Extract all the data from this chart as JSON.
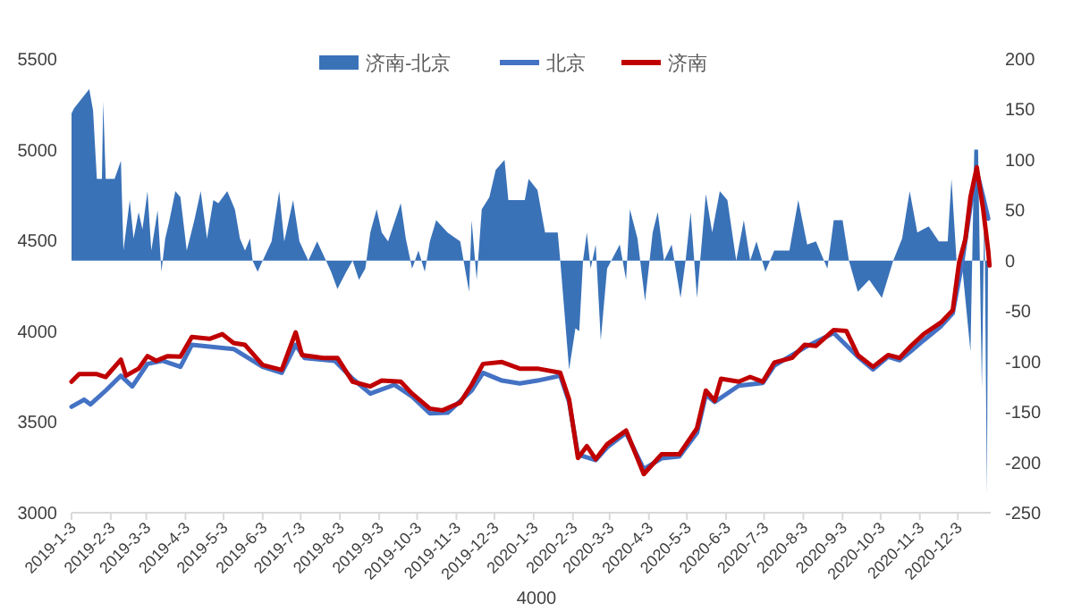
{
  "chart_data": {
    "type": "line",
    "legend": "top",
    "xlim": [
      "2019-01-03",
      "2020-12-29"
    ],
    "xticks": [
      {
        "value": "2019-01-03",
        "label": "2019-1-3"
      },
      {
        "value": "2019-02-03",
        "label": "2019-2-3"
      },
      {
        "value": "2019-03-03",
        "label": "2019-3-3"
      },
      {
        "value": "2019-04-03",
        "label": "2019-4-3"
      },
      {
        "value": "2019-05-03",
        "label": "2019-5-3"
      },
      {
        "value": "2019-06-03",
        "label": "2019-6-3"
      },
      {
        "value": "2019-07-03",
        "label": "2019-7-3"
      },
      {
        "value": "2019-08-03",
        "label": "2019-8-3"
      },
      {
        "value": "2019-09-03",
        "label": "2019-9-3"
      },
      {
        "value": "2019-10-03",
        "label": "2019-10-3"
      },
      {
        "value": "2019-11-03",
        "label": "2019-11-3"
      },
      {
        "value": "2019-12-03",
        "label": "2019-12-3"
      },
      {
        "value": "2020-01-03",
        "label": "2020-1-3"
      },
      {
        "value": "2020-02-03",
        "label": "2020-2-3"
      },
      {
        "value": "2020-03-03",
        "label": "2020-3-3"
      },
      {
        "value": "2020-04-03",
        "label": "2020-4-3"
      },
      {
        "value": "2020-05-03",
        "label": "2020-5-3"
      },
      {
        "value": "2020-06-03",
        "label": "2020-6-3"
      },
      {
        "value": "2020-07-03",
        "label": "2020-7-3"
      },
      {
        "value": "2020-08-03",
        "label": "2020-8-3"
      },
      {
        "value": "2020-09-03",
        "label": "2020-9-3"
      },
      {
        "value": "2020-10-03",
        "label": "2020-10-3"
      },
      {
        "value": "2020-11-03",
        "label": "2020-11-3"
      },
      {
        "value": "2020-12-03",
        "label": "2020-12-3"
      }
    ],
    "ylim": [
      3000,
      5500
    ],
    "yticks": [
      3000,
      3500,
      4000,
      4500,
      5000,
      5500
    ],
    "y2lim": [
      -250,
      200
    ],
    "y2ticks": [
      -250,
      -200,
      -150,
      -100,
      -50,
      0,
      50,
      100,
      150,
      200
    ],
    "annotations": [
      "4000"
    ],
    "series": [
      {
        "name": "济南-北京",
        "type": "area",
        "axis": "y2",
        "color": "#3a72b8",
        "x": [
          "2019-01-03",
          "2019-01-05",
          "2019-01-17",
          "2019-01-20",
          "2019-01-23",
          "2019-01-27",
          "2019-01-28",
          "2019-01-30",
          "2019-02-06",
          "2019-02-11",
          "2019-02-13",
          "2019-02-18",
          "2019-02-21",
          "2019-02-25",
          "2019-02-28",
          "2019-03-04",
          "2019-03-07",
          "2019-03-12",
          "2019-03-15",
          "2019-03-18",
          "2019-03-21",
          "2019-03-26",
          "2019-03-30",
          "2019-04-04",
          "2019-04-10",
          "2019-04-15",
          "2019-04-20",
          "2019-04-25",
          "2019-04-29",
          "2019-05-06",
          "2019-05-12",
          "2019-05-16",
          "2019-05-20",
          "2019-05-24",
          "2019-05-26",
          "2019-05-30",
          "2019-06-03",
          "2019-06-10",
          "2019-06-16",
          "2019-06-20",
          "2019-06-27",
          "2019-07-02",
          "2019-07-09",
          "2019-07-16",
          "2019-07-23",
          "2019-07-27",
          "2019-08-01",
          "2019-08-08",
          "2019-08-13",
          "2019-08-18",
          "2019-08-23",
          "2019-08-27",
          "2019-09-01",
          "2019-09-05",
          "2019-09-10",
          "2019-09-20",
          "2019-09-24",
          "2019-09-29",
          "2019-10-04",
          "2019-10-09",
          "2019-10-13",
          "2019-10-18",
          "2019-10-27",
          "2019-11-06",
          "2019-11-13",
          "2019-11-15",
          "2019-11-19",
          "2019-11-23",
          "2019-11-29",
          "2019-12-04",
          "2019-12-11",
          "2019-12-14",
          "2019-12-27",
          "2019-12-30",
          "2020-01-06",
          "2020-01-12",
          "2020-01-22",
          "2020-01-24",
          "2020-01-31",
          "2020-02-05",
          "2020-02-08",
          "2020-02-11",
          "2020-02-14",
          "2020-02-17",
          "2020-02-21",
          "2020-02-25",
          "2020-03-01",
          "2020-03-11",
          "2020-03-16",
          "2020-03-19",
          "2020-03-25",
          "2020-03-31",
          "2020-04-06",
          "2020-04-10",
          "2020-04-15",
          "2020-04-21",
          "2020-04-28",
          "2020-05-02",
          "2020-05-06",
          "2020-05-11",
          "2020-05-18",
          "2020-05-23",
          "2020-05-29",
          "2020-06-04",
          "2020-06-11",
          "2020-06-17",
          "2020-06-22",
          "2020-06-27",
          "2020-07-04",
          "2020-07-11",
          "2020-07-23",
          "2020-07-30",
          "2020-08-06",
          "2020-08-13",
          "2020-08-22",
          "2020-08-27",
          "2020-09-03",
          "2020-09-08",
          "2020-09-15",
          "2020-09-24",
          "2020-10-04",
          "2020-10-13",
          "2020-10-20",
          "2020-10-26",
          "2020-11-01",
          "2020-11-10",
          "2020-11-18",
          "2020-11-25",
          "2020-11-28",
          "2020-12-02",
          "2020-12-06",
          "2020-12-13",
          "2020-12-16",
          "2020-12-19",
          "2020-12-22",
          "2020-12-24",
          "2020-12-26",
          "2020-12-27"
        ],
        "values": [
          146,
          151,
          170,
          149,
          81,
          81,
          158,
          81,
          81,
          99,
          10,
          60,
          22,
          48,
          31,
          69,
          10,
          50,
          -11,
          22,
          38,
          69,
          63,
          10,
          40,
          69,
          22,
          60,
          57,
          69,
          51,
          22,
          10,
          22,
          0,
          -11,
          0,
          19,
          69,
          19,
          60,
          19,
          0,
          19,
          0,
          -11,
          -28,
          -11,
          0,
          -19,
          -8,
          28,
          51,
          28,
          19,
          57,
          22,
          -8,
          10,
          -11,
          19,
          40,
          28,
          19,
          -31,
          40,
          -19,
          51,
          63,
          90,
          100,
          60,
          60,
          81,
          70,
          28,
          28,
          0,
          -108,
          -67,
          -70,
          0,
          28,
          -8,
          16,
          -79,
          -8,
          16,
          -19,
          51,
          22,
          -40,
          28,
          48,
          0,
          16,
          -37,
          0,
          48,
          -37,
          66,
          28,
          69,
          60,
          0,
          40,
          0,
          19,
          -11,
          10,
          10,
          60,
          16,
          19,
          -8,
          40,
          40,
          0,
          -31,
          -19,
          -37,
          0,
          22,
          69,
          28,
          34,
          19,
          19,
          81,
          0,
          0,
          -90,
          110,
          110,
          -126,
          57,
          -232,
          37
        ]
      },
      {
        "name": "北京",
        "color": "#4472c4",
        "x": [
          "2019-01-03",
          "2019-01-13",
          "2019-01-18",
          "2019-01-30",
          "2019-02-11",
          "2019-02-20",
          "2019-03-04",
          "2019-03-16",
          "2019-03-30",
          "2019-04-08",
          "2019-04-27",
          "2019-05-11",
          "2019-06-03",
          "2019-06-18",
          "2019-06-29",
          "2019-07-06",
          "2019-07-30",
          "2019-08-13",
          "2019-08-27",
          "2019-09-15",
          "2019-09-29",
          "2019-10-13",
          "2019-10-27",
          "2019-11-15",
          "2019-11-24",
          "2019-12-09",
          "2019-12-23",
          "2020-01-06",
          "2020-01-24",
          "2020-01-31",
          "2020-02-07",
          "2020-02-21",
          "2020-03-01",
          "2020-03-16",
          "2020-03-30",
          "2020-04-13",
          "2020-04-27",
          "2020-05-11",
          "2020-05-18",
          "2020-05-25",
          "2020-06-13",
          "2020-07-02",
          "2020-07-11",
          "2020-08-04",
          "2020-08-27",
          "2020-09-15",
          "2020-09-27",
          "2020-10-09",
          "2020-10-18",
          "2020-10-27",
          "2020-11-06",
          "2020-11-20",
          "2020-11-29",
          "2020-12-06",
          "2020-12-13",
          "2020-12-18",
          "2020-12-23",
          "2020-12-27"
        ],
        "values": [
          3584,
          3623,
          3597,
          3673,
          3755,
          3696,
          3820,
          3837,
          3804,
          3925,
          3912,
          3902,
          3804,
          3771,
          3925,
          3853,
          3837,
          3738,
          3656,
          3705,
          3640,
          3548,
          3551,
          3673,
          3771,
          3728,
          3712,
          3728,
          3755,
          3610,
          3320,
          3290,
          3360,
          3440,
          3240,
          3300,
          3310,
          3440,
          3650,
          3610,
          3700,
          3715,
          3810,
          3910,
          3990,
          3860,
          3790,
          3860,
          3840,
          3890,
          3950,
          4030,
          4100,
          4360,
          4690,
          4880,
          4740,
          4620
        ]
      },
      {
        "name": "济南",
        "color": "#c00000",
        "x": [
          "2019-01-03",
          "2019-01-09",
          "2019-01-23",
          "2019-01-30",
          "2019-02-11",
          "2019-02-15",
          "2019-02-25",
          "2019-03-04",
          "2019-03-11",
          "2019-03-20",
          "2019-03-30",
          "2019-04-08",
          "2019-04-22",
          "2019-05-02",
          "2019-05-11",
          "2019-05-20",
          "2019-06-03",
          "2019-06-18",
          "2019-06-29",
          "2019-07-04",
          "2019-07-21",
          "2019-08-01",
          "2019-08-13",
          "2019-08-27",
          "2019-09-05",
          "2019-09-20",
          "2019-09-29",
          "2019-10-13",
          "2019-10-23",
          "2019-11-06",
          "2019-11-15",
          "2019-11-24",
          "2019-12-09",
          "2019-12-23",
          "2020-01-06",
          "2020-01-24",
          "2020-01-31",
          "2020-02-07",
          "2020-02-14",
          "2020-02-21",
          "2020-03-01",
          "2020-03-16",
          "2020-03-30",
          "2020-04-13",
          "2020-04-27",
          "2020-05-11",
          "2020-05-18",
          "2020-05-25",
          "2020-05-30",
          "2020-06-13",
          "2020-06-22",
          "2020-07-02",
          "2020-07-11",
          "2020-07-25",
          "2020-08-04",
          "2020-08-13",
          "2020-08-27",
          "2020-09-06",
          "2020-09-15",
          "2020-09-27",
          "2020-10-09",
          "2020-10-18",
          "2020-10-27",
          "2020-11-06",
          "2020-11-20",
          "2020-11-29",
          "2020-12-04",
          "2020-12-09",
          "2020-12-13",
          "2020-12-18",
          "2020-12-23",
          "2020-12-27",
          "2020-12-28"
        ],
        "values": [
          3722,
          3764,
          3764,
          3748,
          3843,
          3755,
          3794,
          3863,
          3837,
          3863,
          3860,
          3968,
          3958,
          3984,
          3935,
          3925,
          3814,
          3787,
          3994,
          3869,
          3853,
          3853,
          3722,
          3696,
          3728,
          3722,
          3656,
          3574,
          3564,
          3607,
          3705,
          3820,
          3830,
          3794,
          3794,
          3771,
          3623,
          3302,
          3367,
          3295,
          3377,
          3453,
          3213,
          3322,
          3322,
          3466,
          3673,
          3617,
          3738,
          3722,
          3748,
          3722,
          3827,
          3853,
          3925,
          3919,
          4007,
          4001,
          3869,
          3804,
          3869,
          3853,
          3919,
          3984,
          4050,
          4116,
          4378,
          4509,
          4739,
          4903,
          4673,
          4444,
          4362
        ]
      }
    ]
  }
}
